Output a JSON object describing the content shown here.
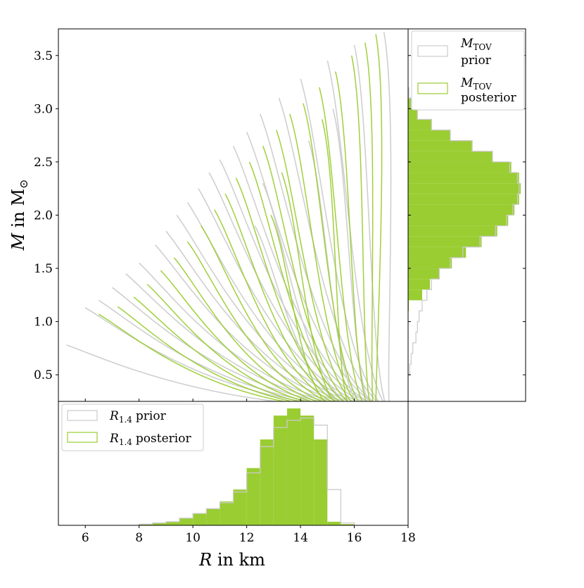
{
  "chart_data": [
    {
      "panel": "main",
      "type": "line",
      "xlabel_symbol": "R",
      "xlabel_rest": " in km",
      "ylabel_symbol": "M",
      "ylabel_rest": " in M",
      "ylabel_sub": "⊙",
      "xlim": [
        5.0,
        18.0
      ],
      "ylim": [
        0.25,
        3.75
      ],
      "xticks": [
        6,
        8,
        10,
        12,
        14,
        16,
        18
      ],
      "yticks": [
        0.5,
        1.0,
        1.5,
        2.0,
        2.5,
        3.0,
        3.5
      ],
      "ytick_labels": [
        "0.5",
        "1.0",
        "1.5",
        "2.0",
        "2.5",
        "3.0",
        "3.5"
      ],
      "series": [
        {
          "role": "prior",
          "color": "#cccccc",
          "curves": [
            {
              "mmax": 0.78,
              "rmax": 5.3,
              "rend": 15.4
            },
            {
              "mmax": 1.13,
              "rmax": 6.0,
              "rend": 15.6
            },
            {
              "mmax": 1.2,
              "rmax": 6.5,
              "rend": 15.8
            },
            {
              "mmax": 1.32,
              "rmax": 7.0,
              "rend": 16.0
            },
            {
              "mmax": 1.45,
              "rmax": 7.5,
              "rend": 16.1
            },
            {
              "mmax": 1.55,
              "rmax": 8.0,
              "rend": 16.2
            },
            {
              "mmax": 1.72,
              "rmax": 8.6,
              "rend": 16.3
            },
            {
              "mmax": 1.85,
              "rmax": 9.0,
              "rend": 16.4
            },
            {
              "mmax": 2.0,
              "rmax": 9.4,
              "rend": 16.5
            },
            {
              "mmax": 2.12,
              "rmax": 9.8,
              "rend": 16.6
            },
            {
              "mmax": 2.25,
              "rmax": 10.2,
              "rend": 16.7
            },
            {
              "mmax": 2.4,
              "rmax": 10.6,
              "rend": 16.8
            },
            {
              "mmax": 2.52,
              "rmax": 11.0,
              "rend": 16.9
            },
            {
              "mmax": 2.65,
              "rmax": 11.5,
              "rend": 16.9
            },
            {
              "mmax": 2.78,
              "rmax": 12.0,
              "rend": 17.0
            },
            {
              "mmax": 2.95,
              "rmax": 12.5,
              "rend": 17.0
            },
            {
              "mmax": 3.1,
              "rmax": 13.2,
              "rend": 17.1
            },
            {
              "mmax": 3.28,
              "rmax": 14.0,
              "rend": 17.1
            },
            {
              "mmax": 3.45,
              "rmax": 15.0,
              "rend": 17.2
            },
            {
              "mmax": 3.6,
              "rmax": 16.0,
              "rend": 17.2
            },
            {
              "mmax": 3.72,
              "rmax": 17.1,
              "rend": 17.3
            },
            {
              "mmax": 2.3,
              "rmax": 12.6,
              "rend": 15.9
            },
            {
              "mmax": 1.9,
              "rmax": 12.3,
              "rend": 15.7
            },
            {
              "mmax": 2.7,
              "rmax": 14.3,
              "rend": 16.2
            },
            {
              "mmax": 3.0,
              "rmax": 15.2,
              "rend": 16.6
            }
          ]
        },
        {
          "role": "posterior",
          "color": "#9acd32",
          "curves": [
            {
              "mmax": 1.07,
              "rmax": 6.5,
              "rend": 14.8
            },
            {
              "mmax": 1.14,
              "rmax": 7.2,
              "rend": 14.9
            },
            {
              "mmax": 1.23,
              "rmax": 7.8,
              "rend": 15.0
            },
            {
              "mmax": 1.35,
              "rmax": 8.3,
              "rend": 15.1
            },
            {
              "mmax": 1.48,
              "rmax": 8.8,
              "rend": 15.2
            },
            {
              "mmax": 1.6,
              "rmax": 9.3,
              "rend": 15.3
            },
            {
              "mmax": 1.75,
              "rmax": 9.8,
              "rend": 15.4
            },
            {
              "mmax": 1.9,
              "rmax": 10.3,
              "rend": 15.5
            },
            {
              "mmax": 2.05,
              "rmax": 10.8,
              "rend": 15.6
            },
            {
              "mmax": 2.2,
              "rmax": 11.2,
              "rend": 15.7
            },
            {
              "mmax": 2.35,
              "rmax": 11.6,
              "rend": 15.8
            },
            {
              "mmax": 2.5,
              "rmax": 12.1,
              "rend": 15.9
            },
            {
              "mmax": 2.65,
              "rmax": 12.6,
              "rend": 16.0
            },
            {
              "mmax": 2.8,
              "rmax": 13.1,
              "rend": 16.1
            },
            {
              "mmax": 2.95,
              "rmax": 13.6,
              "rend": 16.2
            },
            {
              "mmax": 3.05,
              "rmax": 14.1,
              "rend": 16.3
            },
            {
              "mmax": 3.2,
              "rmax": 14.7,
              "rend": 16.4
            },
            {
              "mmax": 3.35,
              "rmax": 15.3,
              "rend": 16.5
            },
            {
              "mmax": 3.5,
              "rmax": 15.9,
              "rend": 16.6
            },
            {
              "mmax": 3.62,
              "rmax": 16.4,
              "rend": 16.7
            },
            {
              "mmax": 3.7,
              "rmax": 16.8,
              "rend": 16.8
            },
            {
              "mmax": 2.4,
              "rmax": 13.3,
              "rend": 15.4
            },
            {
              "mmax": 2.0,
              "rmax": 12.9,
              "rend": 15.1
            },
            {
              "mmax": 2.9,
              "rmax": 14.8,
              "rend": 15.8
            }
          ]
        }
      ]
    },
    {
      "panel": "right",
      "type": "histogram",
      "orientation": "horizontal",
      "ylim": [
        0.25,
        3.75
      ],
      "legend": [
        {
          "symbol": "M",
          "sub": "TOV",
          "text": "prior",
          "style": "step",
          "color": "#cccccc"
        },
        {
          "symbol": "M",
          "sub": "TOV",
          "text": "posterior",
          "style": "filled",
          "color": "#9acd32"
        }
      ],
      "legend_position": "upper-right",
      "bins": [
        0.5,
        0.6,
        0.7,
        0.8,
        0.9,
        1.0,
        1.1,
        1.2,
        1.3,
        1.4,
        1.5,
        1.6,
        1.7,
        1.8,
        1.9,
        2.0,
        2.1,
        2.2,
        2.3,
        2.4,
        2.5,
        2.6,
        2.7,
        2.8,
        2.9,
        3.0,
        3.1
      ],
      "posterior_counts": [
        0,
        0,
        0,
        0,
        0,
        0,
        0.5,
        9,
        14,
        20,
        28,
        37,
        47,
        57,
        64,
        68,
        71,
        72,
        71,
        66,
        54,
        41,
        27,
        15,
        6,
        2,
        0.5
      ],
      "prior_counts": [
        1,
        2,
        3,
        5,
        6,
        7,
        9,
        12,
        15,
        20,
        27,
        35,
        46,
        56,
        63,
        67,
        70,
        71,
        70,
        65,
        54,
        41,
        27,
        15,
        6,
        2,
        0.5
      ]
    },
    {
      "panel": "bottom",
      "type": "histogram",
      "orientation": "vertical",
      "xlim": [
        5.0,
        18.0
      ],
      "legend": [
        {
          "symbol": "R",
          "sub": "1.4",
          "text": "prior",
          "style": "step",
          "color": "#cccccc"
        },
        {
          "symbol": "R",
          "sub": "1.4",
          "text": "posterior",
          "style": "filled",
          "color": "#9acd32"
        }
      ],
      "legend_position": "upper-left",
      "bins": [
        8.0,
        8.5,
        9.0,
        9.5,
        10.0,
        10.5,
        11.0,
        11.5,
        12.0,
        12.5,
        13.0,
        13.5,
        14.0,
        14.5,
        15.0,
        15.5,
        16.0
      ],
      "posterior_counts": [
        1,
        2,
        3,
        6,
        10,
        14,
        20,
        30,
        48,
        72,
        92,
        98,
        92,
        72,
        3,
        1
      ],
      "prior_counts": [
        1,
        2,
        3,
        6,
        10,
        14,
        19,
        28,
        44,
        66,
        82,
        88,
        90,
        84,
        30,
        2
      ]
    }
  ]
}
